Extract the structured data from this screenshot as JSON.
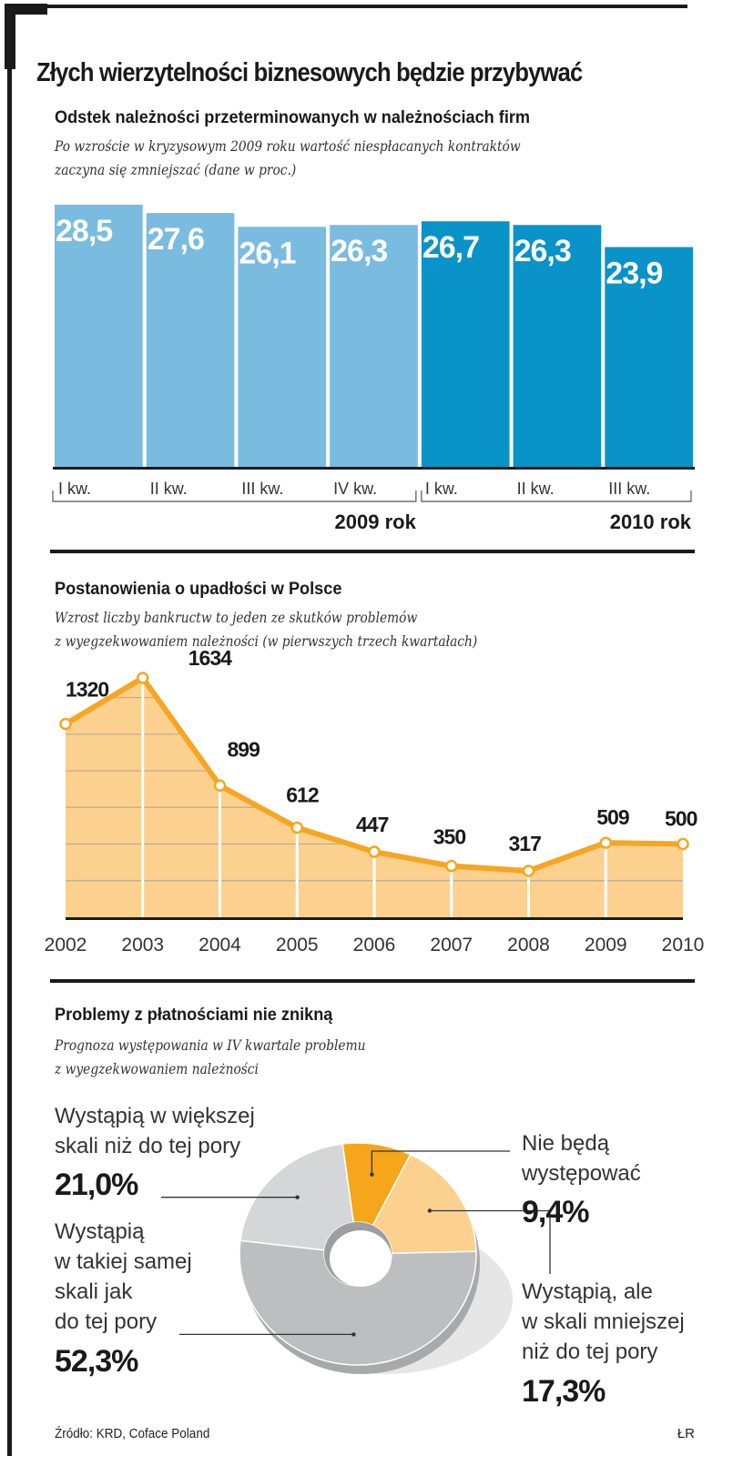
{
  "header": {
    "title": "Złych wierzytelności biznesowych będzie przybywać"
  },
  "section1": {
    "title": "Odstek należności przeterminowanych w należnościach firm",
    "subtitle_lines": [
      "Po wzroście w kryzysowym 2009 roku wartość niespłacanych kontraktów",
      "zaczyna się zmniejszać (dane w proc.)"
    ]
  },
  "section2": {
    "title": "Postanowienia o upadłości w Polsce",
    "subtitle_lines": [
      "Wzrost liczby bankructw to jeden ze skutków problemów",
      "z wyegzekwowaniem należności (w pierwszych trzech kwartałach)"
    ]
  },
  "section3": {
    "title": "Problemy z płatnościami nie znikną",
    "subtitle_lines": [
      "Prognoza występowania w IV kwartale problemu",
      "z wyegzekwowaniem należności"
    ]
  },
  "footer": {
    "source": "Źródło: KRD, Coface Poland",
    "credit": "ŁR"
  },
  "chart_data": [
    {
      "type": "bar",
      "title": "Odstek należności przeterminowanych w należnościach firm",
      "xlabel": "",
      "ylabel": "",
      "unit": "proc.",
      "categories": [
        "I kw.",
        "II kw.",
        "III kw.",
        "IV kw.",
        "I kw.",
        "II kw.",
        "III kw."
      ],
      "groups": [
        {
          "label": "2009 rok",
          "indices": [
            0,
            1,
            2,
            3
          ],
          "color": "#7abbe0"
        },
        {
          "label": "2010 rok",
          "indices": [
            4,
            5,
            6
          ],
          "color": "#0a93c8"
        }
      ],
      "values": [
        28.5,
        27.6,
        26.1,
        26.3,
        26.7,
        26.3,
        23.9
      ],
      "value_labels": [
        "28,5",
        "27,6",
        "26,1",
        "26,3",
        "26,7",
        "26,3",
        "23,9"
      ],
      "ylim": [
        0,
        28.5
      ],
      "grid": false
    },
    {
      "type": "area",
      "title": "Postanowienia o upadłości w Polsce",
      "xlabel": "",
      "ylabel": "",
      "x": [
        "2002",
        "2003",
        "2004",
        "2005",
        "2006",
        "2007",
        "2008",
        "2009",
        "2010"
      ],
      "values": [
        1320,
        1634,
        899,
        612,
        447,
        350,
        317,
        509,
        500
      ],
      "value_labels": [
        "1320",
        "1634",
        "899",
        "612",
        "447",
        "350",
        "317",
        "509",
        "500"
      ],
      "ylim": [
        0,
        1634
      ],
      "grid": true,
      "colors": {
        "line": "#f5a623",
        "fill": "#fcd08e",
        "grid": "#b9aa95"
      }
    },
    {
      "type": "pie",
      "title": "Problemy z płatnościami nie znikną",
      "style": "donut-3d",
      "slices": [
        {
          "label": "Nie będą występować",
          "value": 9.4,
          "value_label": "9,4%",
          "color": "#f5a61b"
        },
        {
          "label": "Wystąpią, ale w skali mniejszej niż do tej pory",
          "value": 17.3,
          "value_label": "17,3%",
          "color": "#fcd08e"
        },
        {
          "label": "Wystąpią w takiej samej skali jak do tej pory",
          "value": 52.3,
          "value_label": "52,3%",
          "color": "#bdbec0"
        },
        {
          "label": "Wystąpią w większej skali niż do tej pory",
          "value": 21.0,
          "value_label": "21,0%",
          "color": "#d5d6d8"
        }
      ],
      "legend_lines": {
        "s0": [
          "Nie będą",
          "występować"
        ],
        "s1": [
          "Wystąpią, ale",
          "w skali mniejszej",
          "niż do tej pory"
        ],
        "s2": [
          "Wystąpią",
          "w takiej samej",
          "skali jak",
          "do tej pory"
        ],
        "s3": [
          "Wystąpią w większej",
          "skali niż do tej pory"
        ]
      }
    }
  ]
}
